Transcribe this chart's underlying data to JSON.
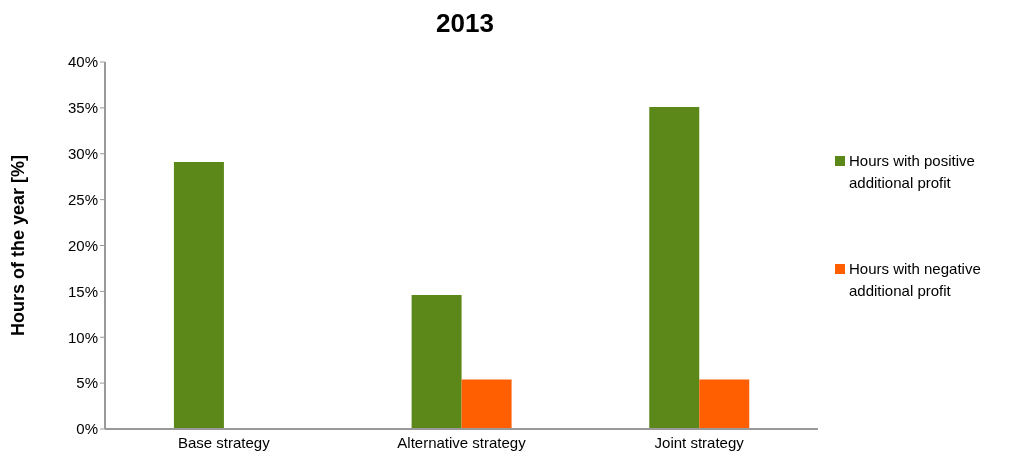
{
  "chart_data": {
    "type": "bar",
    "title": "2013",
    "ylabel": "Hours of the year [%]",
    "categories": [
      "Base strategy",
      "Alternative strategy",
      "Joint strategy"
    ],
    "series": [
      {
        "name": "Hours with positive additional profit",
        "color": "#5c881a",
        "values": [
          29.1,
          14.6,
          35.1
        ]
      },
      {
        "name": "Hours with negative additional profit",
        "color": "#ff5f00",
        "values": [
          null,
          5.4,
          5.4
        ]
      }
    ],
    "ylim": [
      0,
      40
    ],
    "yticks": [
      {
        "value": 0,
        "label": "0%"
      },
      {
        "value": 5,
        "label": "5%"
      },
      {
        "value": 10,
        "label": "10%"
      },
      {
        "value": 15,
        "label": "15%"
      },
      {
        "value": 20,
        "label": "20%"
      },
      {
        "value": 25,
        "label": "25%"
      },
      {
        "value": 30,
        "label": "30%"
      },
      {
        "value": 35,
        "label": "35%"
      },
      {
        "value": 40,
        "label": "40%"
      }
    ],
    "grid": false,
    "legend": "right"
  }
}
